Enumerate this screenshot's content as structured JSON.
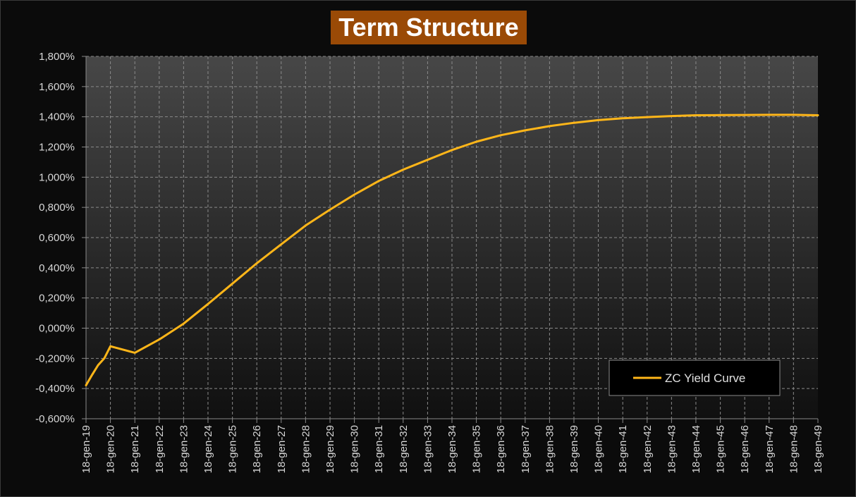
{
  "chart_data": {
    "type": "line",
    "title": "Term Structure",
    "xlabel": "",
    "ylabel": "",
    "grid": true,
    "legend_position": "bottom-right",
    "colors": {
      "background": "#0b0b0b",
      "title_background": "#9a4a06",
      "line": "#ffb619",
      "grid": "#8a8a8a"
    },
    "x_ticks": [
      "18-gen-19",
      "18-gen-20",
      "18-gen-21",
      "18-gen-22",
      "18-gen-23",
      "18-gen-24",
      "18-gen-25",
      "18-gen-26",
      "18-gen-27",
      "18-gen-28",
      "18-gen-29",
      "18-gen-30",
      "18-gen-31",
      "18-gen-32",
      "18-gen-33",
      "18-gen-34",
      "18-gen-35",
      "18-gen-36",
      "18-gen-37",
      "18-gen-38",
      "18-gen-39",
      "18-gen-40",
      "18-gen-41",
      "18-gen-42",
      "18-gen-43",
      "18-gen-44",
      "18-gen-45",
      "18-gen-46",
      "18-gen-47",
      "18-gen-48",
      "18-gen-49"
    ],
    "y_ticks": [
      -0.6,
      -0.4,
      -0.2,
      0.0,
      0.2,
      0.4,
      0.6,
      0.8,
      1.0,
      1.2,
      1.4,
      1.6,
      1.8
    ],
    "y_tick_labels": [
      "-0,600%",
      "-0,400%",
      "-0,200%",
      "0,000%",
      "0,200%",
      "0,400%",
      "0,600%",
      "0,800%",
      "1,000%",
      "1,200%",
      "1,400%",
      "1,600%",
      "1,800%"
    ],
    "xlim": [
      "18-gen-19",
      "18-gen-49"
    ],
    "ylim": [
      -0.6,
      1.8
    ],
    "series": [
      {
        "name": "ZC Yield Curve",
        "x": [
          "18-gen-19",
          "18-apr-19",
          "18-lug-19",
          "18-ott-19",
          "18-gen-20",
          "18-gen-21",
          "18-gen-22",
          "18-gen-23",
          "18-gen-24",
          "18-gen-25",
          "18-gen-26",
          "18-gen-27",
          "18-gen-28",
          "18-gen-29",
          "18-gen-30",
          "18-gen-31",
          "18-gen-32",
          "18-gen-33",
          "18-gen-34",
          "18-gen-35",
          "18-gen-36",
          "18-gen-37",
          "18-gen-38",
          "18-gen-39",
          "18-gen-40",
          "18-gen-41",
          "18-gen-42",
          "18-gen-43",
          "18-gen-44",
          "18-gen-45",
          "18-gen-46",
          "18-gen-47",
          "18-gen-48",
          "18-gen-49"
        ],
        "values": [
          -0.378,
          -0.31,
          -0.245,
          -0.2,
          -0.12,
          -0.163,
          -0.075,
          0.03,
          0.16,
          0.295,
          0.43,
          0.555,
          0.68,
          0.785,
          0.885,
          0.975,
          1.05,
          1.115,
          1.18,
          1.235,
          1.278,
          1.31,
          1.338,
          1.36,
          1.378,
          1.39,
          1.398,
          1.405,
          1.41,
          1.411,
          1.412,
          1.413,
          1.413,
          1.41
        ]
      }
    ]
  }
}
